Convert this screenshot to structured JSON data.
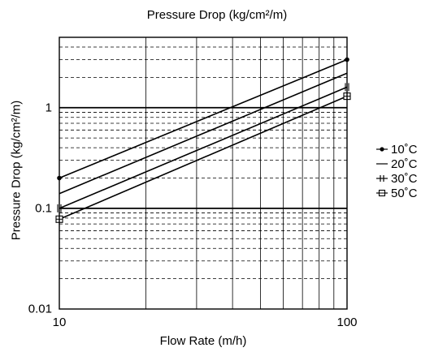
{
  "chart_data": {
    "type": "line",
    "title": "Pressure Drop (kg/cm²/m)",
    "xlabel": "Flow Rate (m/h)",
    "ylabel": "Pressure Drop (kg/cm²/m)",
    "x_scale": "log",
    "y_scale": "log",
    "xlim": [
      10,
      100
    ],
    "ylim": [
      0.01,
      5
    ],
    "x_tick_labels": [
      "10",
      "100"
    ],
    "y_tick_labels": [
      "1",
      "0.1",
      "0.01"
    ],
    "grid": true,
    "legend_position": "right",
    "series": [
      {
        "name": "10˚C",
        "marker": "dot",
        "x": [
          10,
          100
        ],
        "y": [
          0.2,
          3.0
        ]
      },
      {
        "name": "20˚C",
        "marker": "none",
        "x": [
          10,
          100
        ],
        "y": [
          0.14,
          2.2
        ]
      },
      {
        "name": "30˚C",
        "marker": "plus",
        "x": [
          10,
          100
        ],
        "y": [
          0.1,
          1.6
        ]
      },
      {
        "name": "50˚C",
        "marker": "square",
        "x": [
          10,
          100
        ],
        "y": [
          0.078,
          1.3
        ]
      }
    ]
  }
}
